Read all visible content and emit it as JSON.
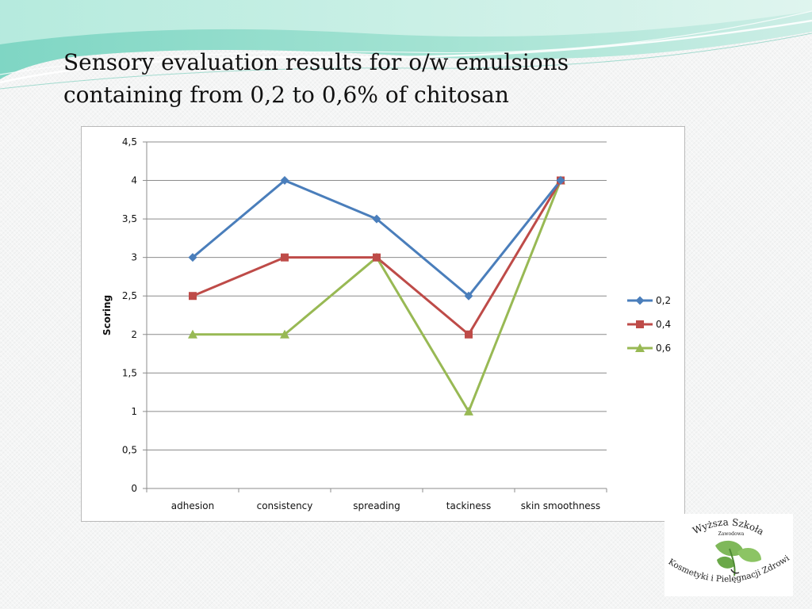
{
  "slide": {
    "title_line1": "Sensory evaluation results for o/w emulsions",
    "title_line2": "containing from 0,2 to 0,6% of chitosan"
  },
  "chart_data": {
    "type": "line",
    "title": "",
    "xlabel": "",
    "ylabel": "Scoring",
    "categories": [
      "adhesion",
      "consistency",
      "spreading",
      "tackiness",
      "skin smoothness"
    ],
    "ylim": [
      0,
      4.5
    ],
    "yticks": [
      0,
      0.5,
      1,
      1.5,
      2,
      2.5,
      3,
      3.5,
      4,
      4.5
    ],
    "ytick_labels": [
      "0",
      "0,5",
      "1",
      "1,5",
      "2",
      "2,5",
      "3",
      "3,5",
      "4",
      "4,5"
    ],
    "grid": true,
    "legend_position": "right",
    "series": [
      {
        "name": "0,2",
        "values": [
          3,
          4,
          3.5,
          2.5,
          4
        ],
        "color": "#4a7ebb",
        "marker": "diamond"
      },
      {
        "name": "0,4",
        "values": [
          2.5,
          3,
          3,
          2,
          4
        ],
        "color": "#be4b48",
        "marker": "square"
      },
      {
        "name": "0,6",
        "values": [
          2,
          2,
          3,
          1,
          4
        ],
        "color": "#98b954",
        "marker": "triangle"
      }
    ]
  },
  "logo": {
    "text_top": "Wyższa Szkoła",
    "text_sub": "Zawodowa",
    "text_bottom": "Kosmetyki i Pielęgnacji Zdrowia",
    "colors": {
      "leaf": "#7fb85a",
      "leaf_dark": "#4e8a34"
    }
  }
}
